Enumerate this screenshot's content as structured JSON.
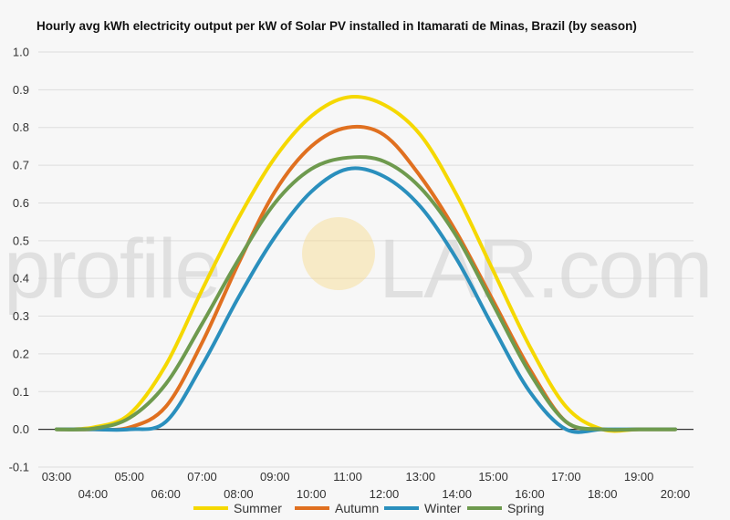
{
  "title": "Hourly avg kWh electricity output per kW of Solar PV installed in Itamarati de Minas, Brazil (by season)",
  "watermark": {
    "left": "profile",
    "right": "LAR.com"
  },
  "colors": {
    "Summer": "#f5d800",
    "Autumn": "#e07020",
    "Winter": "#2a8fbd",
    "Spring": "#6e9a4e",
    "grid": "#dddddd",
    "zero_line": "#333333"
  },
  "chart_data": {
    "type": "line",
    "title": "Hourly avg kWh electricity output per kW of Solar PV installed in Itamarati de Minas, Brazil (by season)",
    "xlabel": "",
    "ylabel": "",
    "ylim": [
      -0.1,
      1.0
    ],
    "yticks": [
      "-0.1",
      "0.0",
      "0.1",
      "0.2",
      "0.3",
      "0.4",
      "0.5",
      "0.6",
      "0.7",
      "0.8",
      "0.9",
      "1.0"
    ],
    "x": [
      "03:00",
      "04:00",
      "05:00",
      "06:00",
      "07:00",
      "08:00",
      "09:00",
      "10:00",
      "11:00",
      "12:00",
      "13:00",
      "14:00",
      "15:00",
      "16:00",
      "17:00",
      "18:00",
      "19:00",
      "20:00"
    ],
    "grid": true,
    "legend_position": "bottom",
    "series": [
      {
        "name": "Summer",
        "values": [
          0.0,
          0.005,
          0.04,
          0.17,
          0.37,
          0.56,
          0.72,
          0.83,
          0.88,
          0.86,
          0.78,
          0.62,
          0.42,
          0.22,
          0.06,
          0.0,
          0.0,
          0.0
        ]
      },
      {
        "name": "Autumn",
        "values": [
          0.0,
          0.0,
          0.005,
          0.06,
          0.23,
          0.44,
          0.63,
          0.75,
          0.8,
          0.78,
          0.67,
          0.52,
          0.34,
          0.16,
          0.02,
          0.0,
          0.0,
          0.0
        ]
      },
      {
        "name": "Winter",
        "values": [
          0.0,
          0.0,
          0.0,
          0.02,
          0.17,
          0.35,
          0.51,
          0.63,
          0.69,
          0.67,
          0.59,
          0.45,
          0.27,
          0.1,
          0.0,
          0.0,
          0.0,
          0.0
        ]
      },
      {
        "name": "Spring",
        "values": [
          0.0,
          0.002,
          0.03,
          0.12,
          0.28,
          0.45,
          0.6,
          0.69,
          0.72,
          0.71,
          0.64,
          0.51,
          0.33,
          0.15,
          0.02,
          0.0,
          0.0,
          0.0
        ]
      }
    ]
  }
}
